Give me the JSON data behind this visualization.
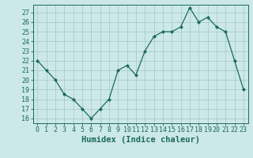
{
  "x": [
    0,
    1,
    2,
    3,
    4,
    5,
    6,
    7,
    8,
    9,
    10,
    11,
    12,
    13,
    14,
    15,
    16,
    17,
    18,
    19,
    20,
    21,
    22,
    23
  ],
  "y": [
    22,
    21,
    20,
    18.5,
    18,
    17,
    16,
    17,
    18,
    21,
    21.5,
    20.5,
    23,
    24.5,
    25,
    25,
    25.5,
    27.5,
    26,
    26.5,
    25.5,
    25,
    22,
    19
  ],
  "line_color": "#1a6b5a",
  "marker": "D",
  "marker_size": 2.0,
  "bg_color": "#cce8e8",
  "grid_color": "#aacccc",
  "xlabel": "Humidex (Indice chaleur)",
  "ylabel_ticks": [
    16,
    17,
    18,
    19,
    20,
    21,
    22,
    23,
    24,
    25,
    26,
    27
  ],
  "ylim": [
    15.5,
    27.8
  ],
  "xlim": [
    -0.5,
    23.5
  ],
  "tick_label_color": "#1a6b5a",
  "xlabel_color": "#1a6b5a",
  "axis_color": "#1a6b5a",
  "font_size_ticks": 6.0,
  "font_size_xlabel": 7.5
}
